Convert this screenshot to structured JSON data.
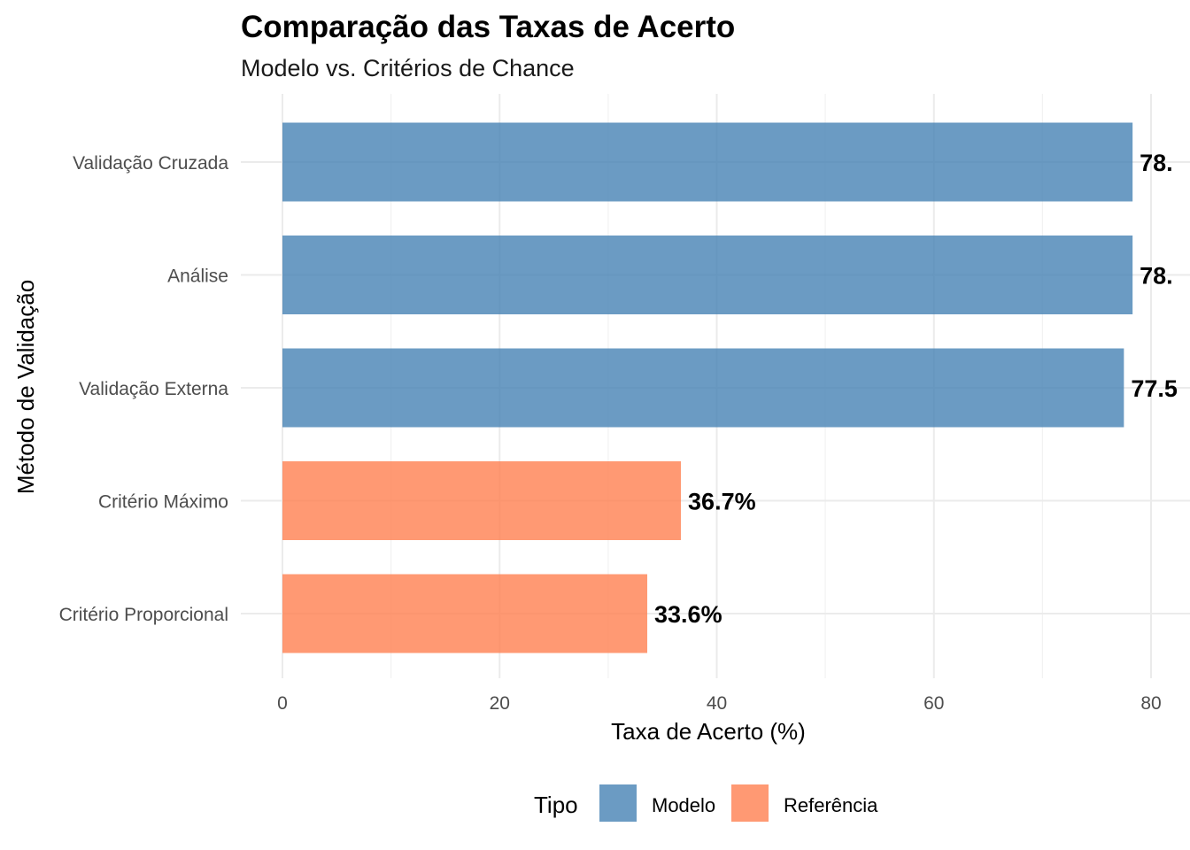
{
  "chart_data": {
    "type": "bar",
    "orientation": "horizontal",
    "title": "Comparação das Taxas de Acerto",
    "subtitle": "Modelo vs. Critérios de Chance",
    "xlabel": "Taxa de Acerto (%)",
    "ylabel": "Método de Validação",
    "xlim": [
      0,
      80
    ],
    "x_ticks": [
      "0",
      "20",
      "40",
      "60",
      "80"
    ],
    "grid": true,
    "legend_position": "bottom",
    "legend": {
      "title": "Tipo",
      "entries": [
        {
          "label": "Modelo",
          "color": "#4682B4"
        },
        {
          "label": "Referência",
          "color": "#FF7F50"
        }
      ]
    },
    "categories": [
      "Validação Cruzada",
      "Análise",
      "Validação Externa",
      "Critério Máximo",
      "Critério Proporcional"
    ],
    "bars": [
      {
        "category": "Validação Cruzada",
        "value": 78.3,
        "label": "78.",
        "type": "Modelo"
      },
      {
        "category": "Análise",
        "value": 78.3,
        "label": "78.",
        "type": "Modelo"
      },
      {
        "category": "Validação Externa",
        "value": 77.5,
        "label": "77.5",
        "type": "Modelo"
      },
      {
        "category": "Critério Máximo",
        "value": 36.7,
        "label": "36.7%",
        "type": "Referência"
      },
      {
        "category": "Critério Proporcional",
        "value": 33.6,
        "label": "33.6%",
        "type": "Referência"
      }
    ]
  }
}
